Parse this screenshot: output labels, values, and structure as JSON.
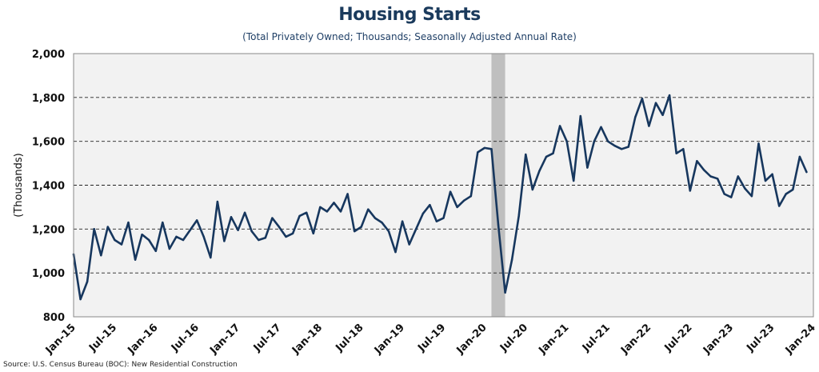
{
  "chart_data": {
    "type": "line",
    "title": "Housing Starts",
    "subtitle": "(Total Privately Owned; Thousands; Seasonally Adjusted Annual Rate)",
    "xlabel": "",
    "ylabel": "(Thousands)",
    "source": "Source: U.S. Census Bureau (BOC): New Residential Construction",
    "ylim": [
      800,
      2000
    ],
    "yticks": [
      800,
      1000,
      1200,
      1400,
      1600,
      1800,
      2000
    ],
    "ytick_labels": [
      "800",
      "1,000",
      "1,200",
      "1,400",
      "1,600",
      "1,800",
      "2,000"
    ],
    "x_start": "Jan-15",
    "x_end": "Jan-24",
    "xtick_labels": [
      "Jan-15",
      "Jul-15",
      "Jan-16",
      "Jul-16",
      "Jan-17",
      "Jul-17",
      "Jan-18",
      "Jul-18",
      "Jan-19",
      "Jul-19",
      "Jan-20",
      "Jul-20",
      "Jan-21",
      "Jul-21",
      "Jan-22",
      "Jul-22",
      "Jan-23",
      "Jul-23",
      "Jan-24"
    ],
    "grid": "horizontal dashed",
    "recession_shading": {
      "start": "Feb-20",
      "end": "Apr-20"
    },
    "series": [
      {
        "color": "#17375e",
        "x": [
          "Jan-15",
          "Feb-15",
          "Mar-15",
          "Apr-15",
          "May-15",
          "Jun-15",
          "Jul-15",
          "Aug-15",
          "Sep-15",
          "Oct-15",
          "Nov-15",
          "Dec-15",
          "Jan-16",
          "Feb-16",
          "Mar-16",
          "Apr-16",
          "May-16",
          "Jun-16",
          "Jul-16",
          "Aug-16",
          "Sep-16",
          "Oct-16",
          "Nov-16",
          "Dec-16",
          "Jan-17",
          "Feb-17",
          "Mar-17",
          "Apr-17",
          "May-17",
          "Jun-17",
          "Jul-17",
          "Aug-17",
          "Sep-17",
          "Oct-17",
          "Nov-17",
          "Dec-17",
          "Jan-18",
          "Feb-18",
          "Mar-18",
          "Apr-18",
          "May-18",
          "Jun-18",
          "Jul-18",
          "Aug-18",
          "Sep-18",
          "Oct-18",
          "Nov-18",
          "Dec-18",
          "Jan-19",
          "Feb-19",
          "Mar-19",
          "Apr-19",
          "May-19",
          "Jun-19",
          "Jul-19",
          "Aug-19",
          "Sep-19",
          "Oct-19",
          "Nov-19",
          "Dec-19",
          "Jan-20",
          "Feb-20",
          "Mar-20",
          "Apr-20",
          "May-20",
          "Jun-20",
          "Jul-20",
          "Aug-20",
          "Sep-20",
          "Oct-20",
          "Nov-20",
          "Dec-20",
          "Jan-21",
          "Feb-21",
          "Mar-21",
          "Apr-21",
          "May-21",
          "Jun-21",
          "Jul-21",
          "Aug-21",
          "Sep-21",
          "Oct-21",
          "Nov-21",
          "Dec-21",
          "Jan-22",
          "Feb-22",
          "Mar-22",
          "Apr-22",
          "May-22",
          "Jun-22",
          "Jul-22",
          "Aug-22",
          "Sep-22",
          "Oct-22",
          "Nov-22",
          "Dec-22",
          "Jan-23",
          "Feb-23",
          "Mar-23",
          "Apr-23",
          "May-23",
          "Jun-23",
          "Jul-23",
          "Aug-23",
          "Sep-23",
          "Oct-23",
          "Nov-23",
          "Dec-23"
        ],
        "values": [
          1085,
          880,
          960,
          1200,
          1080,
          1210,
          1150,
          1130,
          1230,
          1060,
          1175,
          1150,
          1100,
          1230,
          1110,
          1165,
          1150,
          1195,
          1240,
          1165,
          1070,
          1325,
          1145,
          1255,
          1195,
          1275,
          1190,
          1150,
          1160,
          1250,
          1210,
          1165,
          1180,
          1260,
          1275,
          1180,
          1300,
          1280,
          1320,
          1280,
          1360,
          1190,
          1210,
          1290,
          1250,
          1230,
          1190,
          1095,
          1235,
          1130,
          1200,
          1270,
          1310,
          1235,
          1250,
          1370,
          1300,
          1330,
          1350,
          1550,
          1570,
          1565,
          1220,
          910,
          1060,
          1260,
          1540,
          1380,
          1465,
          1530,
          1545,
          1670,
          1600,
          1420,
          1715,
          1480,
          1600,
          1665,
          1600,
          1580,
          1565,
          1575,
          1710,
          1795,
          1670,
          1775,
          1720,
          1810,
          1545,
          1565,
          1375,
          1510,
          1470,
          1440,
          1430,
          1360,
          1345,
          1440,
          1385,
          1350,
          1590,
          1420,
          1450,
          1305,
          1360,
          1380,
          1530,
          1460
        ]
      }
    ]
  }
}
